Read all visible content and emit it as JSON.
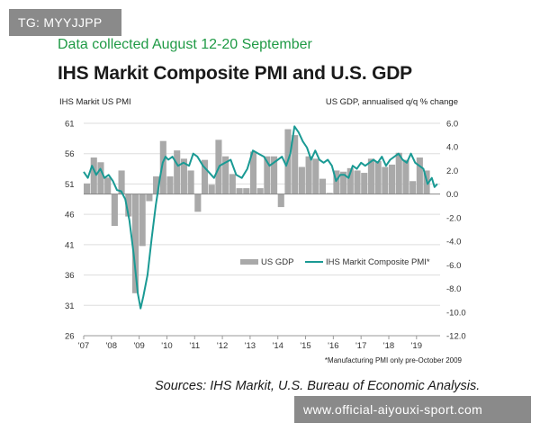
{
  "page": {
    "tag": "TG: MYYJJPP",
    "subtitle": "Data collected August 12-20 September",
    "title": "IHS Markit Composite PMI and U.S. GDP",
    "sources": "Sources:  IHS Markit, U.S. Bureau of Economic Analysis.",
    "watermark": "www.official-aiyouxi-sport.com"
  },
  "colors": {
    "line": "#1a9a94",
    "bar": "#a9a9a9",
    "grid": "#dddddd",
    "subtitle": "#1f9a45"
  },
  "chart_data": {
    "type": "bar+line",
    "title": "IHS Markit Composite PMI and U.S. GDP",
    "left_axis_label": "IHS Markit US PMI",
    "right_axis_label": "US GDP, annualised q/q % change",
    "left_ticks": [
      61,
      56,
      51,
      46,
      41,
      36,
      31,
      26
    ],
    "right_ticks": [
      "6.0",
      "4.0",
      "2.0",
      "0.0",
      "-2.0",
      "-4.0",
      "-6.0",
      "-8.0",
      "-10.0",
      "-12.0"
    ],
    "ylim_left": [
      26,
      61
    ],
    "ylim_right": [
      -12,
      6
    ],
    "x_tick_labels": [
      "'07",
      "'08",
      "'09",
      "'10",
      "'11",
      "'12",
      "'13",
      "'14",
      "'15",
      "'16",
      "'17",
      "'18",
      "'19"
    ],
    "xlim": [
      2007.0,
      2019.85
    ],
    "legend": [
      "US GDP",
      "IHS Markit Composite PMI*"
    ],
    "legend_position": "lower-right",
    "footnote": "*Manufacturing PMI only pre-October 2009",
    "gdp_series": {
      "name": "US GDP",
      "quarters": [
        "2007Q1",
        "2007Q2",
        "2007Q3",
        "2007Q4",
        "2008Q1",
        "2008Q2",
        "2008Q3",
        "2008Q4",
        "2009Q1",
        "2009Q2",
        "2009Q3",
        "2009Q4",
        "2010Q1",
        "2010Q2",
        "2010Q3",
        "2010Q4",
        "2011Q1",
        "2011Q2",
        "2011Q3",
        "2011Q4",
        "2012Q1",
        "2012Q2",
        "2012Q3",
        "2012Q4",
        "2013Q1",
        "2013Q2",
        "2013Q3",
        "2013Q4",
        "2014Q1",
        "2014Q2",
        "2014Q3",
        "2014Q4",
        "2015Q1",
        "2015Q2",
        "2015Q3",
        "2015Q4",
        "2016Q1",
        "2016Q2",
        "2016Q3",
        "2016Q4",
        "2017Q1",
        "2017Q2",
        "2017Q3",
        "2017Q4",
        "2018Q1",
        "2018Q2",
        "2018Q3",
        "2018Q4",
        "2019Q1",
        "2019Q2"
      ],
      "values": [
        0.9,
        3.1,
        2.7,
        1.4,
        -2.7,
        2.0,
        -1.9,
        -8.4,
        -4.4,
        -0.6,
        1.5,
        4.5,
        1.5,
        3.7,
        3.0,
        2.0,
        -1.5,
        2.9,
        0.8,
        4.6,
        3.2,
        1.7,
        0.5,
        0.5,
        3.6,
        0.5,
        3.2,
        3.2,
        -1.1,
        5.5,
        5.0,
        2.3,
        3.2,
        3.0,
        1.3,
        0.1,
        2.0,
        1.9,
        2.2,
        2.0,
        1.8,
        3.0,
        2.8,
        2.3,
        2.5,
        3.5,
        2.9,
        1.1,
        3.1,
        2.0
      ]
    },
    "pmi_series": {
      "name": "IHS Markit Composite PMI*",
      "x": [
        2007.0,
        2007.15,
        2007.3,
        2007.45,
        2007.6,
        2007.75,
        2007.9,
        2008.05,
        2008.2,
        2008.35,
        2008.5,
        2008.65,
        2008.8,
        2008.95,
        2009.05,
        2009.15,
        2009.3,
        2009.45,
        2009.6,
        2009.75,
        2009.85,
        2009.95,
        2010.05,
        2010.2,
        2010.4,
        2010.6,
        2010.8,
        2010.95,
        2011.1,
        2011.3,
        2011.5,
        2011.7,
        2011.9,
        2012.1,
        2012.3,
        2012.5,
        2012.7,
        2012.9,
        2013.1,
        2013.3,
        2013.5,
        2013.7,
        2013.85,
        2014.0,
        2014.15,
        2014.3,
        2014.45,
        2014.6,
        2014.75,
        2014.9,
        2015.05,
        2015.2,
        2015.35,
        2015.5,
        2015.65,
        2015.8,
        2015.95,
        2016.1,
        2016.25,
        2016.4,
        2016.55,
        2016.7,
        2016.85,
        2017.0,
        2017.15,
        2017.3,
        2017.45,
        2017.6,
        2017.75,
        2017.9,
        2018.05,
        2018.2,
        2018.35,
        2018.5,
        2018.65,
        2018.8,
        2018.95,
        2019.1,
        2019.25,
        2019.4,
        2019.55,
        2019.65,
        2019.75
      ],
      "values": [
        53.0,
        52.0,
        54.0,
        52.5,
        53.5,
        52.0,
        52.5,
        51.5,
        50.0,
        49.8,
        48.5,
        45.0,
        39.5,
        33.0,
        30.5,
        32.5,
        36.0,
        42.0,
        47.5,
        52.0,
        54.5,
        55.5,
        55.0,
        55.5,
        54.0,
        54.5,
        54.0,
        56.0,
        55.5,
        54.0,
        53.0,
        52.0,
        54.0,
        54.5,
        55.0,
        52.5,
        52.0,
        53.5,
        56.5,
        56.0,
        55.5,
        54.0,
        54.5,
        55.0,
        55.5,
        54.0,
        56.0,
        60.5,
        59.5,
        58.0,
        57.0,
        55.0,
        56.5,
        55.0,
        54.5,
        55.0,
        54.0,
        51.5,
        52.5,
        52.5,
        52.0,
        54.0,
        53.5,
        54.5,
        54.0,
        54.5,
        55.0,
        54.5,
        55.5,
        54.0,
        55.0,
        55.5,
        56.0,
        55.0,
        54.5,
        56.0,
        54.5,
        54.0,
        53.5,
        51.0,
        52.0,
        50.5,
        51.0
      ]
    }
  }
}
